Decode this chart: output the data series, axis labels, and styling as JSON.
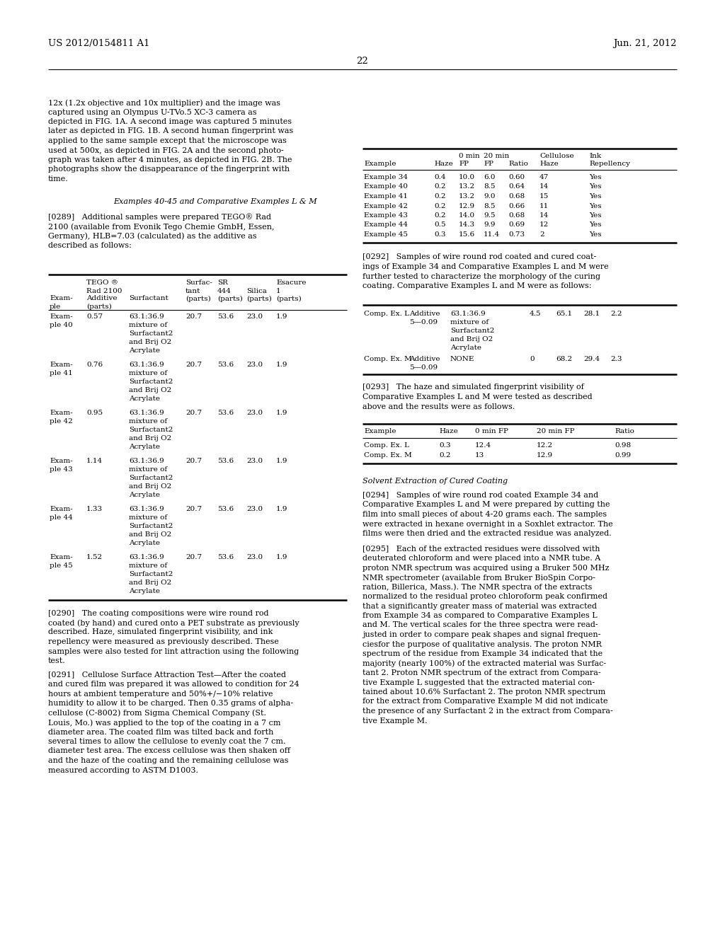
{
  "page_header_left": "US 2012/0154811 A1",
  "page_header_right": "Jun. 21, 2012",
  "page_number": "22",
  "bg_color": "#ffffff"
}
